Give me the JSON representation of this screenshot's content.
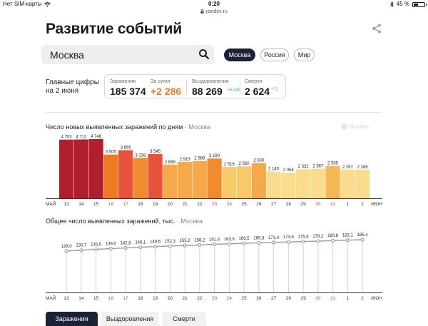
{
  "status_bar": {
    "carrier": "Нет SIM-карты",
    "time": "0:20",
    "battery": "45 %",
    "battery_level": 0.45,
    "url": "yandex.ru",
    "icons": [
      "wifi-icon",
      "lock-icon",
      "bluetooth-icon",
      "battery-icon"
    ]
  },
  "header": {
    "title": "Развитие событий",
    "share_icon": "share-icon"
  },
  "search": {
    "value": "Москва",
    "icon": "search-icon"
  },
  "region_filters": [
    {
      "label": "Москва",
      "active": true
    },
    {
      "label": "Россия",
      "active": false
    },
    {
      "label": "Мир",
      "active": false
    }
  ],
  "summary": {
    "label_line1": "Главные цифры",
    "label_line2": "на 2 июня",
    "stats": [
      {
        "label": "Заражения",
        "value": "185 374",
        "delta": ""
      },
      {
        "label": "За сутки",
        "value": "+2 286",
        "delta": ""
      },
      {
        "label": "Выздоровления",
        "value": "88 269",
        "delta": "+6 030"
      },
      {
        "label": "Смерти",
        "value": "2 624",
        "delta": "+71"
      }
    ]
  },
  "colors": {
    "accent_orange": "#f07a22",
    "dark_navy": "#1c2136",
    "delta_green": "#3bb16f",
    "delta_orange": "#f07a22",
    "weekend_red": "#e8413a"
  },
  "chart_data": [
    {
      "type": "bar",
      "title": "Число новых выявленных заражений по дням",
      "title_region": "Москва",
      "watermark": "Яндекс",
      "categories": [
        "13",
        "14",
        "15",
        "16",
        "17",
        "18",
        "19",
        "20",
        "21",
        "22",
        "23",
        "24",
        "25",
        "26",
        "27",
        "28",
        "29",
        "30",
        "31",
        "1",
        "2"
      ],
      "month_start": "МАЙ",
      "month_end": "ИЮН",
      "values": [
        4703,
        4712,
        4748,
        3505,
        3855,
        3238,
        3545,
        2699,
        2913,
        2988,
        3190,
        2516,
        2560,
        2830,
        2140,
        2054,
        2332,
        2367,
        2595,
        2297,
        2286
      ],
      "value_labels": [
        "4 703",
        "4 712",
        "4 748",
        "3 505",
        "3 855",
        "3 238",
        "3 545",
        "2 699",
        "2 913",
        "2 988",
        "3 190",
        "2 516",
        "2 560",
        "2 830",
        "2 140",
        "2 054",
        "2 332",
        "2 367",
        "2 595",
        "2 297",
        "2 286"
      ],
      "colors": [
        "#b11e2d",
        "#b11e2d",
        "#b11e2d",
        "#f07a22",
        "#e8513a",
        "#f28a2e",
        "#e8513a",
        "#f5a94a",
        "#f5a94a",
        "#f5a94a",
        "#f28a2e",
        "#f9c86a",
        "#f9c86a",
        "#f5a94a",
        "#fbdb8c",
        "#fbdb8c",
        "#fbdb8c",
        "#fbdb8c",
        "#f5b656",
        "#fbdb8c",
        "#fbdb8c"
      ],
      "weekend_indices": [
        3,
        4,
        10,
        11,
        17,
        18
      ],
      "ylim": [
        0,
        4800
      ]
    },
    {
      "type": "line",
      "title": "Общее число выявленных заражений, тыс.",
      "title_region": "Москва",
      "categories": [
        "13",
        "14",
        "15",
        "16",
        "17",
        "18",
        "19",
        "20",
        "21",
        "22",
        "23",
        "24",
        "25",
        "26",
        "27",
        "28",
        "29",
        "30",
        "31",
        "1",
        "2"
      ],
      "month_start": "МАЙ",
      "month_end": "ИЮН",
      "values": [
        126.0,
        130.7,
        135.5,
        139.0,
        142.8,
        146.1,
        149.6,
        152.3,
        155.2,
        158.2,
        161.4,
        163.9,
        166.5,
        169.3,
        171.4,
        173.5,
        175.8,
        178.2,
        180.8,
        183.1,
        185.4
      ],
      "value_labels": [
        "126,0",
        "130,7",
        "135,5",
        "139,0",
        "142,8",
        "146,1",
        "149,6",
        "152,3",
        "155,2",
        "158,2",
        "161,4",
        "163,9",
        "166,5",
        "169,3",
        "171,4",
        "173,5",
        "175,8",
        "178,2",
        "180,8",
        "183,1",
        "185,4"
      ],
      "weekend_indices": [
        3,
        4,
        10,
        11,
        17,
        18
      ],
      "line_color": "#9aa0b2",
      "ylim": [
        0,
        200
      ]
    }
  ],
  "bottom_tabs": [
    {
      "label": "Заражения",
      "active": true
    },
    {
      "label": "Выздоровления",
      "active": false
    },
    {
      "label": "Смерти",
      "active": false
    }
  ]
}
